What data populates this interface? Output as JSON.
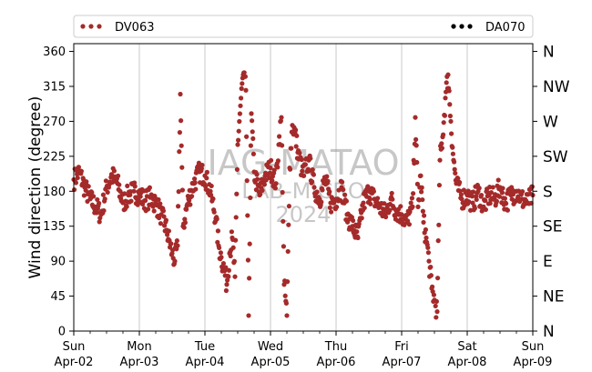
{
  "chart_data": {
    "type": "scatter",
    "ylabel": "Wind direction (degree)",
    "ylim": [
      0,
      370
    ],
    "y_ticks": [
      0,
      45,
      90,
      135,
      180,
      225,
      270,
      315,
      360
    ],
    "compass_ticks": [
      {
        "value": 0,
        "label": "N"
      },
      {
        "value": 45,
        "label": "NE"
      },
      {
        "value": 90,
        "label": "E"
      },
      {
        "value": 135,
        "label": "SE"
      },
      {
        "value": 180,
        "label": "S"
      },
      {
        "value": 225,
        "label": "SW"
      },
      {
        "value": 270,
        "label": "W"
      },
      {
        "value": 315,
        "label": "NW"
      },
      {
        "value": 360,
        "label": "N"
      }
    ],
    "x_ticks": [
      {
        "day": "Sun",
        "date": "Apr-02"
      },
      {
        "day": "Mon",
        "date": "Apr-03"
      },
      {
        "day": "Tue",
        "date": "Apr-04"
      },
      {
        "day": "Wed",
        "date": "Apr-05"
      },
      {
        "day": "Thu",
        "date": "Apr-06"
      },
      {
        "day": "Fri",
        "date": "Apr-07"
      },
      {
        "day": "Sat",
        "date": "Apr-08"
      },
      {
        "day": "Sun",
        "date": "Apr-09"
      }
    ],
    "grid": "vertical",
    "legend_placement": "top",
    "watermark": [
      "IAG-MATAO",
      "LAB-MICRO",
      "2024"
    ],
    "series": [
      {
        "name": "DV063",
        "color": "#a52a2a",
        "marker": "dot",
        "points": [
          [
            "Apr-02 00:00",
            195
          ],
          [
            "Apr-02 02:00",
            205
          ],
          [
            "Apr-02 04:00",
            185
          ],
          [
            "Apr-02 06:00",
            170
          ],
          [
            "Apr-02 08:00",
            160
          ],
          [
            "Apr-02 10:00",
            150
          ],
          [
            "Apr-02 12:00",
            185
          ],
          [
            "Apr-02 14:00",
            200
          ],
          [
            "Apr-02 16:00",
            190
          ],
          [
            "Apr-02 18:00",
            165
          ],
          [
            "Apr-02 20:00",
            175
          ],
          [
            "Apr-02 22:00",
            180
          ],
          [
            "Apr-03 00:00",
            175
          ],
          [
            "Apr-03 02:00",
            168
          ],
          [
            "Apr-03 04:00",
            172
          ],
          [
            "Apr-03 06:00",
            165
          ],
          [
            "Apr-03 08:00",
            150
          ],
          [
            "Apr-03 10:00",
            130
          ],
          [
            "Apr-03 12:00",
            100
          ],
          [
            "Apr-03 13:00",
            90
          ],
          [
            "Apr-03 14:00",
            110
          ],
          [
            "Apr-03 15:00",
            305
          ],
          [
            "Apr-03 16:00",
            135
          ],
          [
            "Apr-03 18:00",
            170
          ],
          [
            "Apr-03 20:00",
            190
          ],
          [
            "Apr-03 22:00",
            205
          ],
          [
            "Apr-04 00:00",
            200
          ],
          [
            "Apr-04 02:00",
            180
          ],
          [
            "Apr-04 04:00",
            145
          ],
          [
            "Apr-04 05:00",
            110
          ],
          [
            "Apr-04 06:00",
            95
          ],
          [
            "Apr-04 07:00",
            80
          ],
          [
            "Apr-04 08:00",
            60
          ],
          [
            "Apr-04 09:00",
            100
          ],
          [
            "Apr-04 10:00",
            120
          ],
          [
            "Apr-04 11:00",
            70
          ],
          [
            "Apr-04 12:00",
            240
          ],
          [
            "Apr-04 13:00",
            290
          ],
          [
            "Apr-04 14:00",
            330
          ],
          [
            "Apr-04 15:00",
            310
          ],
          [
            "Apr-04 16:00",
            20
          ],
          [
            "Apr-04 17:00",
            280
          ],
          [
            "Apr-04 18:00",
            205
          ],
          [
            "Apr-04 20:00",
            175
          ],
          [
            "Apr-04 22:00",
            200
          ],
          [
            "Apr-05 00:00",
            210
          ],
          [
            "Apr-05 02:00",
            190
          ],
          [
            "Apr-05 03:00",
            240
          ],
          [
            "Apr-05 04:00",
            275
          ],
          [
            "Apr-05 05:00",
            60
          ],
          [
            "Apr-05 06:00",
            20
          ],
          [
            "Apr-05 07:00",
            210
          ],
          [
            "Apr-05 08:00",
            265
          ],
          [
            "Apr-05 09:00",
            255
          ],
          [
            "Apr-05 10:00",
            230
          ],
          [
            "Apr-05 12:00",
            200
          ],
          [
            "Apr-05 14:00",
            220
          ],
          [
            "Apr-05 16:00",
            185
          ],
          [
            "Apr-05 18:00",
            170
          ],
          [
            "Apr-05 20:00",
            195
          ],
          [
            "Apr-05 22:00",
            165
          ],
          [
            "Apr-06 00:00",
            170
          ],
          [
            "Apr-06 02:00",
            185
          ],
          [
            "Apr-06 04:00",
            150
          ],
          [
            "Apr-06 06:00",
            135
          ],
          [
            "Apr-06 08:00",
            120
          ],
          [
            "Apr-06 10:00",
            165
          ],
          [
            "Apr-06 12:00",
            180
          ],
          [
            "Apr-06 14:00",
            170
          ],
          [
            "Apr-06 16:00",
            160
          ],
          [
            "Apr-06 18:00",
            150
          ],
          [
            "Apr-06 20:00",
            170
          ],
          [
            "Apr-06 22:00",
            155
          ],
          [
            "Apr-07 00:00",
            150
          ],
          [
            "Apr-07 02:00",
            140
          ],
          [
            "Apr-07 04:00",
            160
          ],
          [
            "Apr-07 05:00",
            275
          ],
          [
            "Apr-07 06:00",
            160
          ],
          [
            "Apr-07 07:00",
            200
          ],
          [
            "Apr-07 08:00",
            140
          ],
          [
            "Apr-07 09:00",
            120
          ],
          [
            "Apr-07 10:00",
            90
          ],
          [
            "Apr-07 11:00",
            55
          ],
          [
            "Apr-07 12:00",
            40
          ],
          [
            "Apr-07 13:00",
            25
          ],
          [
            "Apr-07 14:00",
            220
          ],
          [
            "Apr-07 15:00",
            250
          ],
          [
            "Apr-07 16:00",
            300
          ],
          [
            "Apr-07 17:00",
            330
          ],
          [
            "Apr-07 18:00",
            270
          ],
          [
            "Apr-07 19:00",
            220
          ],
          [
            "Apr-07 20:00",
            190
          ],
          [
            "Apr-07 22:00",
            170
          ],
          [
            "Apr-08 00:00",
            175
          ],
          [
            "Apr-08 02:00",
            165
          ],
          [
            "Apr-08 04:00",
            180
          ],
          [
            "Apr-08 06:00",
            160
          ],
          [
            "Apr-08 08:00",
            175
          ],
          [
            "Apr-08 10:00",
            170
          ],
          [
            "Apr-08 12:00",
            185
          ],
          [
            "Apr-08 14:00",
            165
          ],
          [
            "Apr-08 16:00",
            175
          ],
          [
            "Apr-08 18:00",
            180
          ],
          [
            "Apr-08 20:00",
            170
          ],
          [
            "Apr-08 22:00",
            165
          ],
          [
            "Apr-09 00:00",
            175
          ]
        ]
      },
      {
        "name": "DA070",
        "color": "#000000",
        "marker": "dot",
        "points": []
      }
    ]
  }
}
